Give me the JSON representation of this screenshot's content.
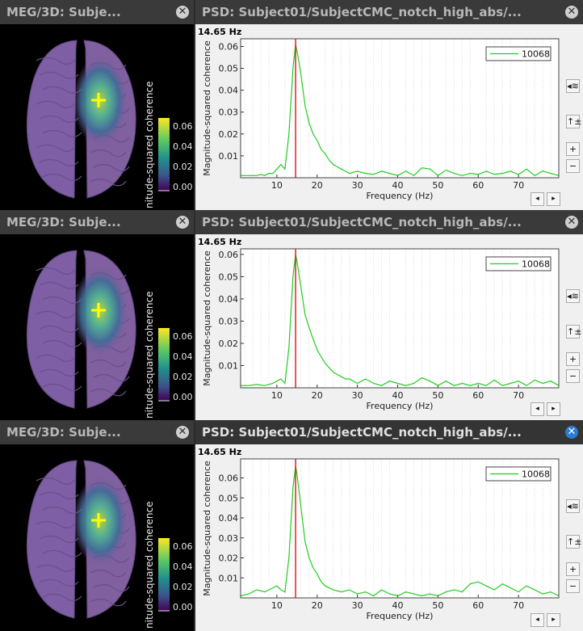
{
  "rows": [
    {
      "brain": {
        "title": "MEG/3D: Subje...",
        "colorbar": {
          "label": "nitude-squared coherence",
          "ticks": [
            "0.06",
            "0.04",
            "0.02",
            "0.00"
          ]
        }
      },
      "psd": {
        "title": "PSD: Subject01/SubjectCMC_notch_high_abs/...",
        "active": false,
        "freq_readout": "14.65 Hz",
        "legend": "10068"
      }
    },
    {
      "brain": {
        "title": "MEG/3D: Subje...",
        "colorbar": {
          "label": "nitude-squared coherence",
          "ticks": [
            "0.06",
            "0.04",
            "0.02",
            "0.00"
          ]
        }
      },
      "psd": {
        "title": "PSD: Subject01/SubjectCMC_notch_high_abs/...",
        "active": false,
        "freq_readout": "14.65 Hz",
        "legend": "10068"
      }
    },
    {
      "brain": {
        "title": "MEG/3D: Subje...",
        "colorbar": {
          "label": "nitude-squared coherence",
          "ticks": [
            "0.06",
            "0.04",
            "0.02",
            "0.00"
          ]
        }
      },
      "psd": {
        "title": "PSD: Subject01/SubjectCMC_notch_high_abs/...",
        "active": true,
        "freq_readout": "14.65 Hz",
        "legend": "10068"
      }
    }
  ],
  "side_buttons": {
    "wave": "◂≋",
    "fit": "↑±",
    "zoom_in": "+",
    "zoom_out": "−"
  },
  "nav_buttons": {
    "prev": "◂",
    "next": "▸"
  },
  "close_icon_glyph": "✕",
  "colors": {
    "trace": "#22cc22",
    "cursor": "#dd2222"
  },
  "chart_data": [
    {
      "type": "line",
      "xlabel": "Frequency (Hz)",
      "ylabel": "Magnitude-squared coherence",
      "xticks": [
        10,
        20,
        30,
        40,
        50,
        60,
        70
      ],
      "yticks": [
        0.01,
        0.02,
        0.03,
        0.04,
        0.05,
        0.06
      ],
      "xlim": [
        1,
        80
      ],
      "ylim": [
        0,
        0.0635
      ],
      "cursor_x": 14.65,
      "legend_placement": "top-right",
      "series": [
        {
          "name": "10068",
          "x": [
            1,
            3,
            5,
            6,
            7,
            8,
            9,
            10,
            11,
            12,
            13,
            14,
            14.65,
            15,
            16,
            17,
            18,
            19,
            20,
            21,
            22,
            23,
            24,
            25,
            26,
            27,
            28,
            30,
            32,
            34,
            36,
            38,
            40,
            42,
            44,
            46,
            48,
            50,
            52,
            54,
            56,
            58,
            60,
            62,
            64,
            66,
            68,
            70,
            72,
            74,
            76,
            78,
            80
          ],
          "y": [
            0.001,
            0.001,
            0.001,
            0.0015,
            0.001,
            0.002,
            0.002,
            0.004,
            0.006,
            0.004,
            0.02,
            0.05,
            0.061,
            0.058,
            0.047,
            0.033,
            0.025,
            0.02,
            0.017,
            0.013,
            0.011,
            0.008,
            0.006,
            0.005,
            0.004,
            0.003,
            0.002,
            0.003,
            0.002,
            0.0015,
            0.003,
            0.002,
            0.001,
            0.003,
            0.001,
            0.0045,
            0.004,
            0.001,
            0.0035,
            0.002,
            0.001,
            0.002,
            0.0015,
            0.003,
            0.0015,
            0.002,
            0.003,
            0.0015,
            0.004,
            0.001,
            0.003,
            0.002,
            0.001
          ]
        }
      ]
    },
    {
      "type": "line",
      "xlabel": "Frequency (Hz)",
      "ylabel": "Magnitude-squared coherence",
      "xticks": [
        10,
        20,
        30,
        40,
        50,
        60,
        70
      ],
      "yticks": [
        0.01,
        0.02,
        0.03,
        0.04,
        0.05,
        0.06
      ],
      "xlim": [
        1,
        80
      ],
      "ylim": [
        0,
        0.0625
      ],
      "cursor_x": 14.65,
      "legend_placement": "top-right",
      "series": [
        {
          "name": "10068",
          "x": [
            1,
            3,
            5,
            7,
            9,
            10,
            11,
            12,
            13,
            14,
            14.65,
            15,
            16,
            17,
            18,
            19,
            20,
            21,
            22,
            23,
            24,
            25,
            26,
            27,
            28,
            30,
            32,
            34,
            36,
            38,
            40,
            42,
            44,
            46,
            48,
            50,
            52,
            54,
            56,
            58,
            60,
            62,
            64,
            66,
            68,
            70,
            72,
            74,
            76,
            78,
            80
          ],
          "y": [
            0.001,
            0.001,
            0.0015,
            0.001,
            0.002,
            0.003,
            0.004,
            0.002,
            0.018,
            0.05,
            0.06,
            0.057,
            0.045,
            0.033,
            0.027,
            0.022,
            0.017,
            0.014,
            0.011,
            0.009,
            0.007,
            0.006,
            0.005,
            0.004,
            0.004,
            0.002,
            0.004,
            0.002,
            0.001,
            0.003,
            0.002,
            0.001,
            0.002,
            0.0045,
            0.003,
            0.001,
            0.003,
            0.001,
            0.002,
            0.001,
            0.002,
            0.001,
            0.0035,
            0.001,
            0.002,
            0.003,
            0.001,
            0.0035,
            0.002,
            0.003,
            0.001
          ]
        }
      ]
    },
    {
      "type": "line",
      "xlabel": "Frequency (Hz)",
      "ylabel": "Magnitude-squared coherence",
      "xticks": [
        10,
        20,
        30,
        40,
        50,
        60,
        70
      ],
      "yticks": [
        0.01,
        0.02,
        0.03,
        0.04,
        0.05,
        0.06
      ],
      "xlim": [
        1,
        80
      ],
      "ylim": [
        0,
        0.0695
      ],
      "cursor_x": 14.65,
      "legend_placement": "top-right",
      "series": [
        {
          "name": "10068",
          "x": [
            1,
            3,
            5,
            7,
            9,
            10,
            11,
            12,
            13,
            14,
            14.65,
            15,
            16,
            17,
            18,
            19,
            20,
            21,
            22,
            23,
            24,
            26,
            28,
            30,
            32,
            34,
            36,
            38,
            40,
            42,
            44,
            46,
            48,
            50,
            52,
            54,
            56,
            58,
            60,
            62,
            64,
            66,
            68,
            70,
            72,
            74,
            76,
            78,
            80
          ],
          "y": [
            0.001,
            0.002,
            0.004,
            0.003,
            0.005,
            0.006,
            0.004,
            0.003,
            0.02,
            0.055,
            0.066,
            0.062,
            0.045,
            0.028,
            0.02,
            0.015,
            0.012,
            0.008,
            0.006,
            0.005,
            0.004,
            0.003,
            0.004,
            0.002,
            0.003,
            0.001,
            0.004,
            0.002,
            0.001,
            0.003,
            0.002,
            0.001,
            0.002,
            0.001,
            0.003,
            0.004,
            0.003,
            0.007,
            0.008,
            0.006,
            0.004,
            0.007,
            0.005,
            0.003,
            0.006,
            0.004,
            0.002,
            0.003,
            0.001
          ]
        }
      ]
    }
  ]
}
